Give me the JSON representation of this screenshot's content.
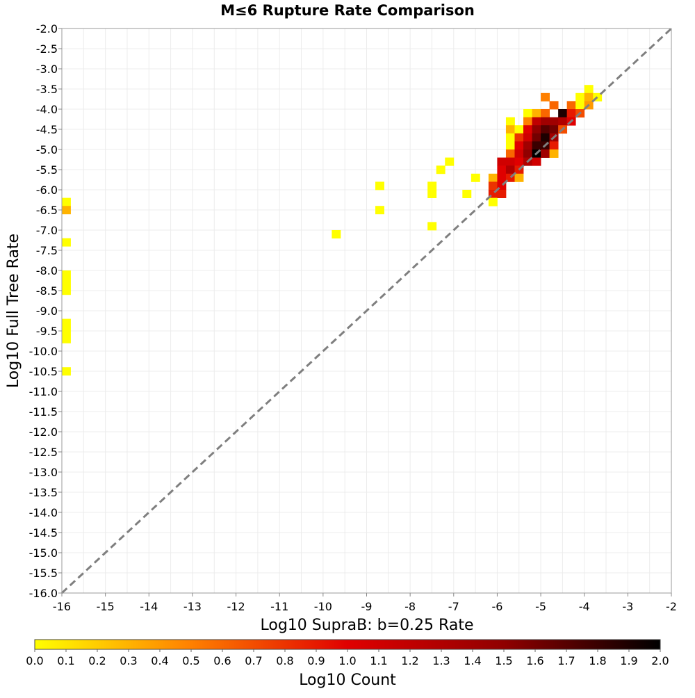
{
  "chart_data": {
    "type": "heatmap",
    "title": "M≤6 Rupture Rate Comparison",
    "xlabel": "Log10 SupraB: b=0.25 Rate",
    "ylabel": "Log10 Full Tree Rate",
    "xlim": [
      -16,
      -2
    ],
    "ylim": [
      -16,
      -2
    ],
    "x_ticks": [
      "-16",
      "-15",
      "-14",
      "-13",
      "-12",
      "-11",
      "-10",
      "-9",
      "-8",
      "-7",
      "-6",
      "-5",
      "-4",
      "-3",
      "-2"
    ],
    "y_ticks": [
      "-2.0",
      "-2.5",
      "-3.0",
      "-3.5",
      "-4.0",
      "-4.5",
      "-5.0",
      "-5.5",
      "-6.0",
      "-6.5",
      "-7.0",
      "-7.5",
      "-8.0",
      "-8.5",
      "-9.0",
      "-9.5",
      "-10.0",
      "-10.5",
      "-11.0",
      "-11.5",
      "-12.0",
      "-12.5",
      "-13.0",
      "-13.5",
      "-14.0",
      "-14.5",
      "-15.0",
      "-15.5",
      "-16.0"
    ],
    "grid": true,
    "reference_line": "y = x (dashed)",
    "bin_size": 0.2,
    "colorbar": {
      "label": "Log10 Count",
      "range": [
        0,
        2
      ],
      "ticks": [
        "0.0",
        "0.1",
        "0.2",
        "0.3",
        "0.4",
        "0.5",
        "0.6",
        "0.7",
        "0.8",
        "0.9",
        "1.0",
        "1.1",
        "1.2",
        "1.3",
        "1.4",
        "1.5",
        "1.6",
        "1.7",
        "1.8",
        "1.9",
        "2.0"
      ],
      "colors": [
        "#ffff00",
        "#ff8000",
        "#e00000",
        "#900000",
        "#000000"
      ]
    },
    "cells": [
      {
        "x": -15.9,
        "y": -6.3,
        "v": 0.0
      },
      {
        "x": -15.9,
        "y": -6.5,
        "v": 0.3
      },
      {
        "x": -15.9,
        "y": -7.3,
        "v": 0.0
      },
      {
        "x": -15.9,
        "y": -8.1,
        "v": 0.0
      },
      {
        "x": -15.9,
        "y": -8.3,
        "v": 0.0
      },
      {
        "x": -15.9,
        "y": -8.5,
        "v": 0.0
      },
      {
        "x": -15.9,
        "y": -9.3,
        "v": 0.0
      },
      {
        "x": -15.9,
        "y": -9.5,
        "v": 0.0
      },
      {
        "x": -15.9,
        "y": -9.7,
        "v": 0.0
      },
      {
        "x": -15.9,
        "y": -10.5,
        "v": 0.0
      },
      {
        "x": -9.7,
        "y": -7.1,
        "v": 0.0
      },
      {
        "x": -8.7,
        "y": -5.9,
        "v": 0.0
      },
      {
        "x": -8.7,
        "y": -6.5,
        "v": 0.0
      },
      {
        "x": -7.5,
        "y": -5.9,
        "v": 0.0
      },
      {
        "x": -7.5,
        "y": -6.1,
        "v": 0.0
      },
      {
        "x": -7.5,
        "y": -6.9,
        "v": 0.0
      },
      {
        "x": -7.3,
        "y": -5.5,
        "v": 0.0
      },
      {
        "x": -7.1,
        "y": -5.3,
        "v": 0.0
      },
      {
        "x": -6.7,
        "y": -6.1,
        "v": 0.0
      },
      {
        "x": -6.5,
        "y": -5.7,
        "v": 0.0
      },
      {
        "x": -6.1,
        "y": -5.7,
        "v": 0.3
      },
      {
        "x": -6.1,
        "y": -5.9,
        "v": 0.8
      },
      {
        "x": -6.1,
        "y": -6.1,
        "v": 0.9
      },
      {
        "x": -6.1,
        "y": -6.3,
        "v": 0.0
      },
      {
        "x": -5.9,
        "y": -5.3,
        "v": 1.1
      },
      {
        "x": -5.9,
        "y": -5.5,
        "v": 1.0
      },
      {
        "x": -5.9,
        "y": -5.7,
        "v": 1.0
      },
      {
        "x": -5.9,
        "y": -5.9,
        "v": 1.0
      },
      {
        "x": -5.9,
        "y": -6.1,
        "v": 0.9
      },
      {
        "x": -5.7,
        "y": -4.3,
        "v": 0.0
      },
      {
        "x": -5.7,
        "y": -4.5,
        "v": 0.3
      },
      {
        "x": -5.7,
        "y": -4.7,
        "v": 0.0
      },
      {
        "x": -5.7,
        "y": -4.9,
        "v": 0.0
      },
      {
        "x": -5.7,
        "y": -5.1,
        "v": 0.6
      },
      {
        "x": -5.7,
        "y": -5.3,
        "v": 1.1
      },
      {
        "x": -5.7,
        "y": -5.5,
        "v": 1.3
      },
      {
        "x": -5.7,
        "y": -5.7,
        "v": 0.9
      },
      {
        "x": -5.5,
        "y": -4.5,
        "v": 0.0
      },
      {
        "x": -5.5,
        "y": -4.7,
        "v": 0.8
      },
      {
        "x": -5.5,
        "y": -4.9,
        "v": 1.0
      },
      {
        "x": -5.5,
        "y": -5.1,
        "v": 1.1
      },
      {
        "x": -5.5,
        "y": -5.3,
        "v": 1.0
      },
      {
        "x": -5.5,
        "y": -5.5,
        "v": 0.9
      },
      {
        "x": -5.5,
        "y": -5.7,
        "v": 0.3
      },
      {
        "x": -5.3,
        "y": -4.1,
        "v": 0.0
      },
      {
        "x": -5.3,
        "y": -4.3,
        "v": 0.5
      },
      {
        "x": -5.3,
        "y": -4.5,
        "v": 1.0
      },
      {
        "x": -5.3,
        "y": -4.7,
        "v": 1.1
      },
      {
        "x": -5.3,
        "y": -4.9,
        "v": 1.4
      },
      {
        "x": -5.3,
        "y": -5.1,
        "v": 1.5
      },
      {
        "x": -5.3,
        "y": -5.3,
        "v": 1.3
      },
      {
        "x": -5.1,
        "y": -4.1,
        "v": 0.3
      },
      {
        "x": -5.1,
        "y": -4.3,
        "v": 1.2
      },
      {
        "x": -5.1,
        "y": -4.5,
        "v": 1.5
      },
      {
        "x": -5.1,
        "y": -4.7,
        "v": 1.6
      },
      {
        "x": -5.1,
        "y": -4.9,
        "v": 1.8
      },
      {
        "x": -5.1,
        "y": -5.1,
        "v": 2.0
      },
      {
        "x": -5.1,
        "y": -5.3,
        "v": 1.1
      },
      {
        "x": -4.9,
        "y": -3.7,
        "v": 0.5
      },
      {
        "x": -4.9,
        "y": -4.1,
        "v": 0.6
      },
      {
        "x": -4.9,
        "y": -4.3,
        "v": 1.4
      },
      {
        "x": -4.9,
        "y": -4.5,
        "v": 1.7
      },
      {
        "x": -4.9,
        "y": -4.7,
        "v": 1.9
      },
      {
        "x": -4.9,
        "y": -4.9,
        "v": 1.8
      },
      {
        "x": -4.9,
        "y": -5.1,
        "v": 1.4
      },
      {
        "x": -4.7,
        "y": -3.9,
        "v": 0.6
      },
      {
        "x": -4.7,
        "y": -4.3,
        "v": 1.4
      },
      {
        "x": -4.7,
        "y": -4.5,
        "v": 1.6
      },
      {
        "x": -4.7,
        "y": -4.7,
        "v": 1.4
      },
      {
        "x": -4.7,
        "y": -4.9,
        "v": 0.9
      },
      {
        "x": -4.7,
        "y": -5.1,
        "v": 0.3
      },
      {
        "x": -4.5,
        "y": -4.1,
        "v": 1.9
      },
      {
        "x": -4.5,
        "y": -4.3,
        "v": 1.3
      },
      {
        "x": -4.5,
        "y": -4.5,
        "v": 0.7
      },
      {
        "x": -4.3,
        "y": -3.9,
        "v": 0.6
      },
      {
        "x": -4.3,
        "y": -4.1,
        "v": 0.9
      },
      {
        "x": -4.3,
        "y": -4.3,
        "v": 1.0
      },
      {
        "x": -4.1,
        "y": -3.7,
        "v": 0.0
      },
      {
        "x": -4.1,
        "y": -3.9,
        "v": 0.0
      },
      {
        "x": -4.1,
        "y": -4.1,
        "v": 0.7
      },
      {
        "x": -3.9,
        "y": -3.5,
        "v": 0.0
      },
      {
        "x": -3.9,
        "y": -3.7,
        "v": 0.3
      },
      {
        "x": -3.9,
        "y": -3.9,
        "v": 0.4
      },
      {
        "x": -3.7,
        "y": -3.7,
        "v": 0.0
      }
    ]
  }
}
